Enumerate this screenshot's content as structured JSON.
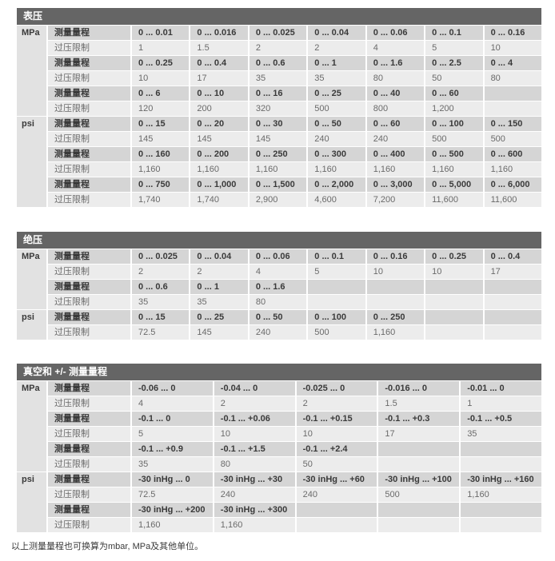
{
  "footer": "以上测量量程也可换算为mbar, MPa及其他单位。",
  "row_labels": {
    "range": "测量量程",
    "limit": "过压限制"
  },
  "colors": {
    "header_bg": "#656565",
    "header_text": "#ffffff",
    "range_row_bg": "#d5d5d5",
    "limit_row_bg": "#ececec",
    "unit_col_bg": "#e2e2e2",
    "text_dark": "#3a3a3a",
    "text_gray": "#6a6a6a"
  },
  "tables": [
    {
      "title": "表压",
      "columns": 7,
      "groups": [
        {
          "unit": "MPa",
          "rows": [
            {
              "type": "range",
              "values": [
                "0 ... 0.01",
                "0 ... 0.016",
                "0 ... 0.025",
                "0 ... 0.04",
                "0 ... 0.06",
                "0 ... 0.1",
                "0 ... 0.16"
              ]
            },
            {
              "type": "limit",
              "values": [
                "1",
                "1.5",
                "2",
                "2",
                "4",
                "5",
                "10"
              ]
            },
            {
              "type": "range",
              "values": [
                "0 ... 0.25",
                "0 ... 0.4",
                "0 ... 0.6",
                "0 ... 1",
                "0 ... 1.6",
                "0 ... 2.5",
                "0 ... 4"
              ]
            },
            {
              "type": "limit",
              "values": [
                "10",
                "17",
                "35",
                "35",
                "80",
                "50",
                "80"
              ]
            },
            {
              "type": "range",
              "values": [
                "0 ... 6",
                "0 ... 10",
                "0 ... 16",
                "0 ... 25",
                "0 ... 40",
                "0 ... 60",
                ""
              ]
            },
            {
              "type": "limit",
              "values": [
                "120",
                "200",
                "320",
                "500",
                "800",
                "1,200",
                ""
              ]
            }
          ]
        },
        {
          "unit": "psi",
          "rows": [
            {
              "type": "range",
              "values": [
                "0 ... 15",
                "0 ... 20",
                "0 ... 30",
                "0 ... 50",
                "0 ... 60",
                "0 ... 100",
                "0 ... 150"
              ]
            },
            {
              "type": "limit",
              "values": [
                "145",
                "145",
                "145",
                "240",
                "240",
                "500",
                "500"
              ]
            },
            {
              "type": "range",
              "values": [
                "0 ... 160",
                "0 ... 200",
                "0 ... 250",
                "0 ... 300",
                "0 ... 400",
                "0 ... 500",
                "0 ... 600"
              ]
            },
            {
              "type": "limit",
              "values": [
                "1,160",
                "1,160",
                "1,160",
                "1,160",
                "1,160",
                "1,160",
                "1,160"
              ]
            },
            {
              "type": "range",
              "values": [
                "0 ... 750",
                "0 ... 1,000",
                "0 ... 1,500",
                "0 ... 2,000",
                "0 ... 3,000",
                "0 ... 5,000",
                "0 ... 6,000"
              ]
            },
            {
              "type": "limit",
              "values": [
                "1,740",
                "1,740",
                "2,900",
                "4,600",
                "7,200",
                "11,600",
                "11,600"
              ]
            }
          ]
        }
      ]
    },
    {
      "title": "绝压",
      "columns": 7,
      "groups": [
        {
          "unit": "MPa",
          "rows": [
            {
              "type": "range",
              "values": [
                "0 ... 0.025",
                "0 ... 0.04",
                "0 ... 0.06",
                "0 ... 0.1",
                "0 ... 0.16",
                "0 ... 0.25",
                "0 ... 0.4"
              ]
            },
            {
              "type": "limit",
              "values": [
                "2",
                "2",
                "4",
                "5",
                "10",
                "10",
                "17"
              ]
            },
            {
              "type": "range",
              "values": [
                "0 ... 0.6",
                "0 ... 1",
                "0 ... 1.6",
                "",
                "",
                "",
                ""
              ]
            },
            {
              "type": "limit",
              "values": [
                "35",
                "35",
                "80",
                "",
                "",
                "",
                ""
              ]
            }
          ]
        },
        {
          "unit": "psi",
          "rows": [
            {
              "type": "range",
              "values": [
                "0 ... 15",
                "0 ... 25",
                "0 ... 50",
                "0 ... 100",
                "0 ... 250",
                "",
                ""
              ]
            },
            {
              "type": "limit",
              "values": [
                "72.5",
                "145",
                "240",
                "500",
                "1,160",
                "",
                ""
              ]
            }
          ]
        }
      ]
    },
    {
      "title": "真空和 +/- 测量量程",
      "columns": 5,
      "groups": [
        {
          "unit": "MPa",
          "rows": [
            {
              "type": "range",
              "values": [
                "-0.06 ... 0",
                "-0.04 ... 0",
                "-0.025 ... 0",
                "-0.016 ... 0",
                "-0.01 ... 0"
              ]
            },
            {
              "type": "limit",
              "values": [
                "4",
                "2",
                "2",
                "1.5",
                "1"
              ]
            },
            {
              "type": "range",
              "values": [
                "-0.1 ... 0",
                "-0.1 ... +0.06",
                "-0.1 ... +0.15",
                "-0.1 ... +0.3",
                "-0.1 ... +0.5"
              ]
            },
            {
              "type": "limit",
              "values": [
                "5",
                "10",
                "10",
                "17",
                "35"
              ]
            },
            {
              "type": "range",
              "values": [
                "-0.1 ... +0.9",
                "-0.1 ... +1.5",
                "-0.1 ... +2.4",
                "",
                ""
              ]
            },
            {
              "type": "limit",
              "values": [
                "35",
                "80",
                "50",
                "",
                ""
              ]
            }
          ]
        },
        {
          "unit": "psi",
          "rows": [
            {
              "type": "range",
              "values": [
                "-30 inHg ... 0",
                "-30 inHg ... +30",
                "-30 inHg ... +60",
                "-30 inHg ... +100",
                "-30 inHg ... +160"
              ]
            },
            {
              "type": "limit",
              "values": [
                "72.5",
                "240",
                "240",
                "500",
                "1,160"
              ]
            },
            {
              "type": "range",
              "values": [
                "-30 inHg ... +200",
                "-30 inHg ... +300",
                "",
                "",
                ""
              ]
            },
            {
              "type": "limit",
              "values": [
                "1,160",
                "1,160",
                "",
                "",
                ""
              ]
            }
          ]
        }
      ]
    }
  ]
}
